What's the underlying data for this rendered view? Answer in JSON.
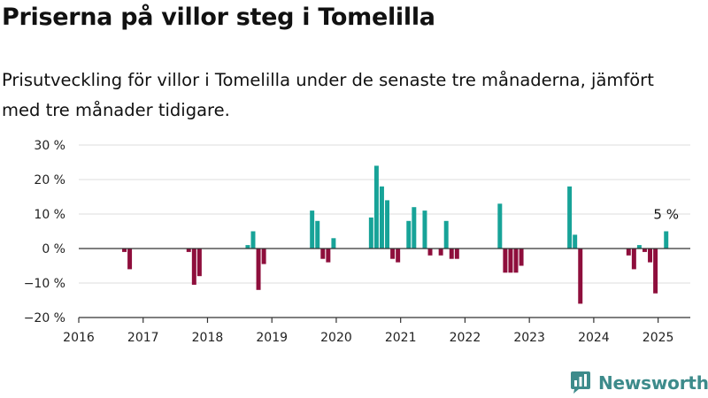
{
  "title": "Priserna på villor steg i Tomelilla",
  "subtitle": "Prisutveckling för villor i Tomelilla under de senaste tre månaderna, jämfört med tre månader tidigare.",
  "logo": {
    "text": "Newsworthy",
    "icon": "newsworthy-chart-icon",
    "color": "#3d8b8b"
  },
  "chart_data": {
    "type": "bar",
    "ylim": [
      -20,
      30
    ],
    "yticks": [
      30,
      20,
      10,
      0,
      -10,
      -20
    ],
    "ytick_labels": [
      "30 %",
      "20 %",
      "10 %",
      "0 %",
      "−10 %",
      "−20 %"
    ],
    "xlim": [
      2016,
      2025.5
    ],
    "xticks": [
      2016,
      2017,
      2018,
      2019,
      2020,
      2021,
      2022,
      2023,
      2024,
      2025
    ],
    "xtick_labels": [
      "2016",
      "2017",
      "2018",
      "2019",
      "2020",
      "2021",
      "2022",
      "2023",
      "2024",
      "2025"
    ],
    "grid": true,
    "colors": {
      "positive": "#17a398",
      "negative": "#8e0e3c"
    },
    "annotation": {
      "text": "5 %",
      "x": "2025-02",
      "y": 5
    },
    "bars": [
      {
        "x": "2016-09",
        "y": -1
      },
      {
        "x": "2016-10",
        "y": -6
      },
      {
        "x": "2017-09",
        "y": -1
      },
      {
        "x": "2017-10",
        "y": -10.5
      },
      {
        "x": "2017-11",
        "y": -8
      },
      {
        "x": "2018-08",
        "y": 1
      },
      {
        "x": "2018-09",
        "y": 5
      },
      {
        "x": "2018-10",
        "y": -12
      },
      {
        "x": "2018-11",
        "y": -4.5
      },
      {
        "x": "2019-08",
        "y": 11
      },
      {
        "x": "2019-09",
        "y": 8
      },
      {
        "x": "2019-10",
        "y": -3
      },
      {
        "x": "2019-11",
        "y": -4
      },
      {
        "x": "2019-12",
        "y": 3
      },
      {
        "x": "2020-07",
        "y": 9
      },
      {
        "x": "2020-08",
        "y": 24
      },
      {
        "x": "2020-09",
        "y": 18
      },
      {
        "x": "2020-10",
        "y": 14
      },
      {
        "x": "2020-11",
        "y": -3
      },
      {
        "x": "2020-12",
        "y": -4
      },
      {
        "x": "2021-02",
        "y": 8
      },
      {
        "x": "2021-03",
        "y": 12
      },
      {
        "x": "2021-05",
        "y": 11
      },
      {
        "x": "2021-06",
        "y": -2
      },
      {
        "x": "2021-08",
        "y": -2
      },
      {
        "x": "2021-09",
        "y": 8
      },
      {
        "x": "2021-10",
        "y": -3
      },
      {
        "x": "2021-11",
        "y": -3
      },
      {
        "x": "2022-07",
        "y": 13
      },
      {
        "x": "2022-08",
        "y": -7
      },
      {
        "x": "2022-09",
        "y": -7
      },
      {
        "x": "2022-10",
        "y": -7
      },
      {
        "x": "2022-11",
        "y": -5
      },
      {
        "x": "2023-08",
        "y": 18
      },
      {
        "x": "2023-09",
        "y": 4
      },
      {
        "x": "2023-10",
        "y": -16
      },
      {
        "x": "2024-07",
        "y": -2
      },
      {
        "x": "2024-08",
        "y": -6
      },
      {
        "x": "2024-09",
        "y": 1
      },
      {
        "x": "2024-10",
        "y": -1
      },
      {
        "x": "2024-11",
        "y": -4
      },
      {
        "x": "2024-12",
        "y": -13
      },
      {
        "x": "2025-02",
        "y": 5
      }
    ]
  }
}
